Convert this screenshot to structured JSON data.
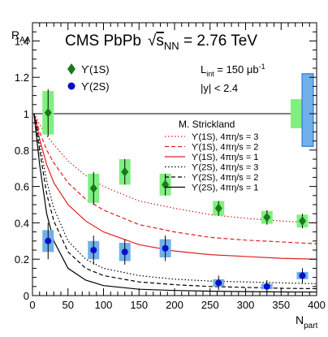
{
  "chart_data": {
    "type": "scatter",
    "title": "CMS PbPb",
    "energy_label": "√s_NN = 2.76 TeV",
    "energy_prefix": "√",
    "energy_s": "s",
    "energy_sub": "NN",
    "energy_value": " = 2.76 TeV",
    "xlabel": "N",
    "xlabel_sub": "part",
    "ylabel": "R",
    "ylabel_sub": "AA",
    "xlim": [
      0,
      400
    ],
    "ylim": [
      0,
      1.5
    ],
    "x_ticks": [
      0,
      50,
      100,
      150,
      200,
      250,
      300,
      350,
      400
    ],
    "y_ticks": [
      0,
      0.2,
      0.4,
      0.6,
      0.8,
      1.0,
      1.2,
      1.4
    ],
    "y_tick_labels": [
      "0",
      "0.2",
      "0.4",
      "0.6",
      "0.8",
      "1",
      "1.2",
      "1.4"
    ],
    "reference_line": 1.0,
    "annotations": {
      "lumi": "L",
      "lumi_sub": "int",
      "lumi_value": " = 150 μb",
      "lumi_sup": "-1",
      "rapidity": "|y| < 2.4",
      "theory_title": "M. Strickland"
    },
    "series": [
      {
        "name": "ϒ(1S)",
        "color": "#1a7a1a",
        "box_color": "#7ff07f",
        "marker": "diamond",
        "x": [
          22,
          86,
          130,
          187,
          262,
          330,
          380
        ],
        "y": [
          1.005,
          0.59,
          0.68,
          0.61,
          0.48,
          0.43,
          0.41
        ],
        "yerr": [
          0.13,
          0.09,
          0.07,
          0.06,
          0.04,
          0.04,
          0.04
        ],
        "syst": [
          0.12,
          0.08,
          0.07,
          0.06,
          0.04,
          0.035,
          0.035
        ],
        "global_syst": [
          0.92,
          1.08
        ]
      },
      {
        "name": "ϒ(2S)",
        "color": "#0a10c8",
        "box_color": "#6fb0ea",
        "marker": "circle",
        "x": [
          22,
          86,
          130,
          187,
          262,
          330,
          380
        ],
        "y": [
          0.3,
          0.25,
          0.24,
          0.26,
          0.07,
          0.05,
          0.11
        ],
        "yerr": [
          0.1,
          0.08,
          0.07,
          0.07,
          0.04,
          0.035,
          0.04
        ],
        "syst": [
          0.06,
          0.05,
          0.05,
          0.05,
          0.02,
          0.015,
          0.02
        ],
        "global_syst": [
          0.82,
          1.22
        ]
      }
    ],
    "theory_curves": [
      {
        "name": "ϒ(1S), 4πη/s = 3",
        "color": "#e02020",
        "style": "dotted",
        "x": [
          2,
          5,
          10,
          20,
          30,
          50,
          75,
          100,
          150,
          200,
          250,
          300,
          350,
          400
        ],
        "y": [
          1.0,
          0.98,
          0.94,
          0.88,
          0.83,
          0.74,
          0.66,
          0.6,
          0.52,
          0.48,
          0.445,
          0.425,
          0.41,
          0.4
        ]
      },
      {
        "name": "ϒ(1S), 4πη/s = 2",
        "color": "#e02020",
        "style": "dashed",
        "x": [
          2,
          5,
          10,
          20,
          30,
          50,
          75,
          100,
          150,
          200,
          250,
          300,
          350,
          400
        ],
        "y": [
          1.0,
          0.97,
          0.9,
          0.8,
          0.73,
          0.62,
          0.53,
          0.47,
          0.39,
          0.35,
          0.32,
          0.305,
          0.295,
          0.285
        ]
      },
      {
        "name": "ϒ(1S), 4πη/s = 1",
        "color": "#e02020",
        "style": "solid",
        "x": [
          2,
          5,
          10,
          20,
          30,
          50,
          75,
          100,
          150,
          200,
          250,
          300,
          350,
          400
        ],
        "y": [
          1.0,
          0.96,
          0.86,
          0.72,
          0.62,
          0.5,
          0.41,
          0.35,
          0.28,
          0.245,
          0.225,
          0.215,
          0.205,
          0.2
        ]
      },
      {
        "name": "ϒ(2S), 4πη/s = 3",
        "color": "#000000",
        "style": "dotted",
        "x": [
          2,
          5,
          10,
          20,
          30,
          50,
          75,
          100,
          150,
          200,
          250,
          300,
          350,
          400
        ],
        "y": [
          1.0,
          0.95,
          0.84,
          0.63,
          0.48,
          0.3,
          0.2,
          0.15,
          0.11,
          0.09,
          0.08,
          0.075,
          0.07,
          0.065
        ]
      },
      {
        "name": "ϒ(2S), 4πη/s = 2",
        "color": "#000000",
        "style": "dashed",
        "x": [
          2,
          5,
          10,
          20,
          30,
          50,
          75,
          100,
          150,
          200,
          250,
          300,
          350,
          400
        ],
        "y": [
          1.0,
          0.93,
          0.8,
          0.56,
          0.41,
          0.24,
          0.15,
          0.11,
          0.075,
          0.06,
          0.05,
          0.045,
          0.04,
          0.038
        ]
      },
      {
        "name": "ϒ(2S), 4πη/s = 1",
        "color": "#000000",
        "style": "solid",
        "x": [
          2,
          5,
          10,
          20,
          30,
          50,
          75,
          100,
          150,
          200,
          250,
          300,
          350,
          400
        ],
        "y": [
          1.0,
          0.9,
          0.72,
          0.45,
          0.3,
          0.15,
          0.085,
          0.055,
          0.035,
          0.028,
          0.024,
          0.022,
          0.02,
          0.019
        ]
      }
    ]
  }
}
